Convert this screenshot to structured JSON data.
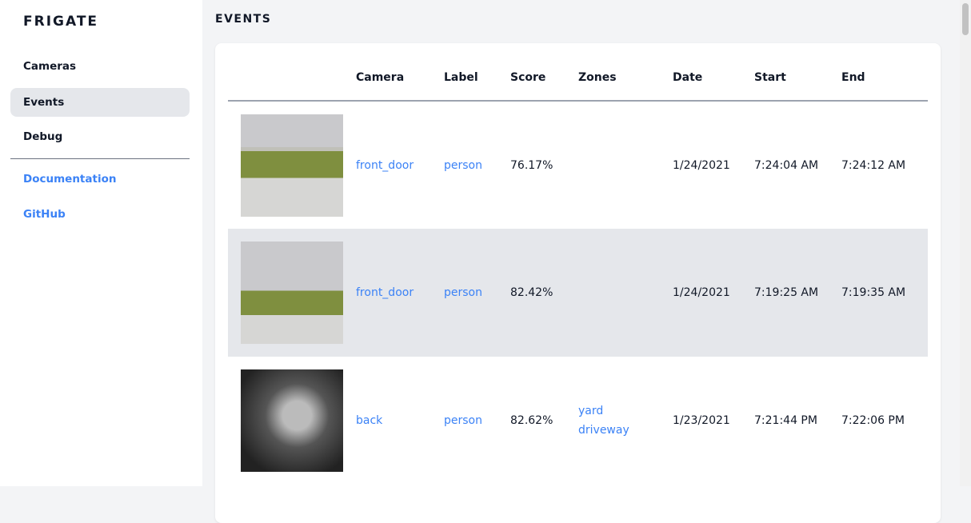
{
  "sidebar": {
    "brand": "FRIGATE",
    "items": [
      {
        "label": "Cameras"
      },
      {
        "label": "Events",
        "active": true
      },
      {
        "label": "Debug"
      }
    ],
    "links": [
      {
        "label": "Documentation"
      },
      {
        "label": "GitHub"
      }
    ]
  },
  "page": {
    "title": "EVENTS"
  },
  "table": {
    "headers": [
      "",
      "Camera",
      "Label",
      "Score",
      "Zones",
      "Date",
      "Start",
      "End"
    ],
    "rows": [
      {
        "camera": "front_door",
        "label": "person",
        "score": "76.17%",
        "zones": [
          "",
          ""
        ],
        "date": "1/24/2021",
        "start": "7:24:04 AM",
        "end": "7:24:12 AM"
      },
      {
        "camera": "front_door",
        "label": "person",
        "score": "82.42%",
        "zones": [
          "",
          ""
        ],
        "date": "1/24/2021",
        "start": "7:19:25 AM",
        "end": "7:19:35 AM"
      },
      {
        "camera": "back",
        "label": "person",
        "score": "82.62%",
        "zones": [
          "yard",
          "driveway"
        ],
        "date": "1/23/2021",
        "start": "7:21:44 PM",
        "end": "7:22:06 PM"
      }
    ]
  },
  "colors": {
    "link": "#3b82f6",
    "active_bg": "#e5e7eb"
  }
}
